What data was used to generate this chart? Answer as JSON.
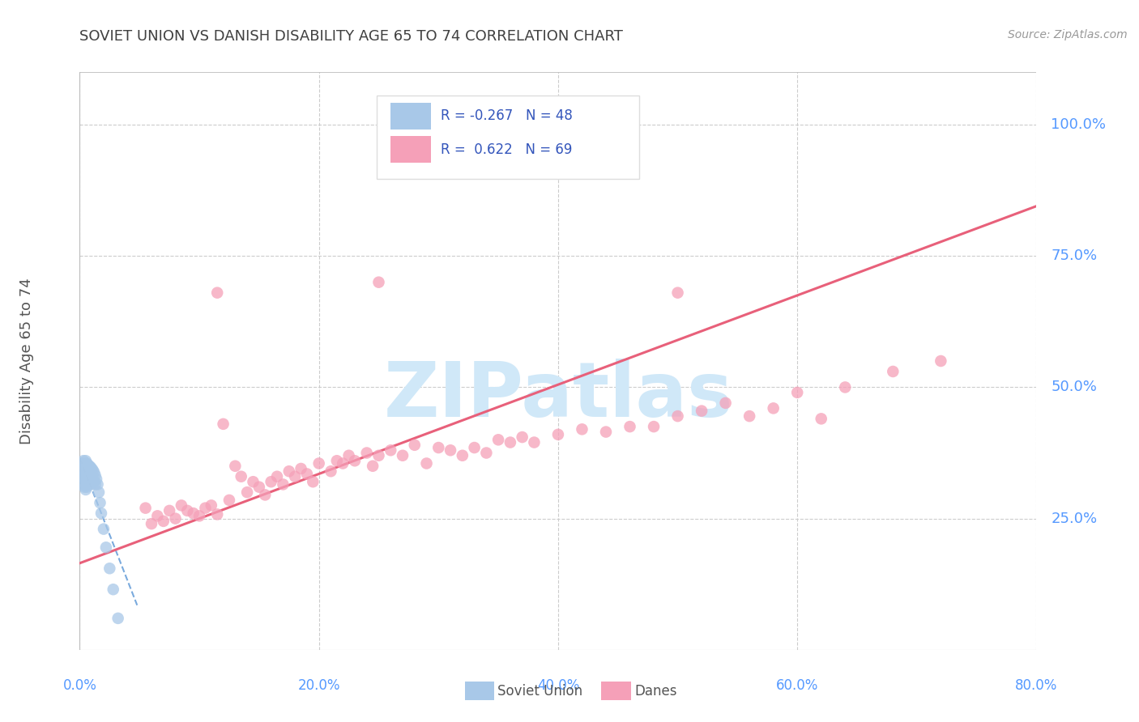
{
  "title": "SOVIET UNION VS DANISH DISABILITY AGE 65 TO 74 CORRELATION CHART",
  "source": "Source: ZipAtlas.com",
  "ylabel": "Disability Age 65 to 74",
  "legend_r_soviet": "R = -0.267",
  "legend_n_soviet": "N = 48",
  "legend_r_danes": "R =  0.622",
  "legend_n_danes": "N = 69",
  "soviet_color": "#a8c8e8",
  "danes_color": "#f5a0b8",
  "soviet_line_color": "#7aaadd",
  "danes_line_color": "#e8607a",
  "background_color": "#ffffff",
  "grid_color": "#cccccc",
  "axis_label_color": "#5599ff",
  "title_color": "#404040",
  "watermark_color": "#d0e8f8",
  "xlim": [
    0.0,
    0.8
  ],
  "ylim": [
    0.0,
    1.1
  ],
  "xticks": [
    0.0,
    0.2,
    0.4,
    0.6,
    0.8
  ],
  "xtick_labels": [
    "0.0%",
    "20.0%",
    "40.0%",
    "60.0%",
    "80.0%"
  ],
  "ytick_positions": [
    0.25,
    0.5,
    0.75,
    1.0
  ],
  "ytick_labels": [
    "25.0%",
    "50.0%",
    "75.0%",
    "100.0%"
  ],
  "soviet_x": [
    0.002,
    0.002,
    0.003,
    0.003,
    0.003,
    0.003,
    0.004,
    0.004,
    0.004,
    0.004,
    0.005,
    0.005,
    0.005,
    0.005,
    0.005,
    0.006,
    0.006,
    0.006,
    0.006,
    0.007,
    0.007,
    0.007,
    0.007,
    0.008,
    0.008,
    0.008,
    0.009,
    0.009,
    0.009,
    0.01,
    0.01,
    0.01,
    0.011,
    0.011,
    0.012,
    0.012,
    0.013,
    0.013,
    0.014,
    0.015,
    0.016,
    0.017,
    0.018,
    0.02,
    0.022,
    0.025,
    0.028,
    0.032
  ],
  "soviet_y": [
    0.355,
    0.33,
    0.36,
    0.345,
    0.33,
    0.315,
    0.35,
    0.338,
    0.325,
    0.31,
    0.36,
    0.345,
    0.335,
    0.32,
    0.305,
    0.355,
    0.34,
    0.325,
    0.31,
    0.352,
    0.34,
    0.328,
    0.315,
    0.35,
    0.336,
    0.32,
    0.348,
    0.332,
    0.318,
    0.345,
    0.33,
    0.315,
    0.342,
    0.325,
    0.338,
    0.32,
    0.332,
    0.315,
    0.325,
    0.315,
    0.3,
    0.28,
    0.26,
    0.23,
    0.195,
    0.155,
    0.115,
    0.06
  ],
  "danes_x": [
    0.055,
    0.06,
    0.065,
    0.07,
    0.075,
    0.08,
    0.085,
    0.09,
    0.095,
    0.1,
    0.105,
    0.11,
    0.115,
    0.12,
    0.125,
    0.13,
    0.135,
    0.14,
    0.145,
    0.15,
    0.155,
    0.16,
    0.165,
    0.17,
    0.175,
    0.18,
    0.185,
    0.19,
    0.195,
    0.2,
    0.21,
    0.215,
    0.22,
    0.225,
    0.23,
    0.24,
    0.245,
    0.25,
    0.26,
    0.27,
    0.28,
    0.29,
    0.3,
    0.31,
    0.32,
    0.33,
    0.34,
    0.35,
    0.36,
    0.37,
    0.38,
    0.4,
    0.42,
    0.44,
    0.46,
    0.48,
    0.5,
    0.52,
    0.54,
    0.56,
    0.58,
    0.6,
    0.64,
    0.68,
    0.72,
    0.5,
    0.115,
    0.25,
    0.62
  ],
  "danes_y": [
    0.27,
    0.24,
    0.255,
    0.245,
    0.265,
    0.25,
    0.275,
    0.265,
    0.26,
    0.255,
    0.27,
    0.275,
    0.258,
    0.43,
    0.285,
    0.35,
    0.33,
    0.3,
    0.32,
    0.31,
    0.295,
    0.32,
    0.33,
    0.315,
    0.34,
    0.33,
    0.345,
    0.335,
    0.32,
    0.355,
    0.34,
    0.36,
    0.355,
    0.37,
    0.36,
    0.375,
    0.35,
    0.37,
    0.38,
    0.37,
    0.39,
    0.355,
    0.385,
    0.38,
    0.37,
    0.385,
    0.375,
    0.4,
    0.395,
    0.405,
    0.395,
    0.41,
    0.42,
    0.415,
    0.425,
    0.425,
    0.445,
    0.455,
    0.47,
    0.445,
    0.46,
    0.49,
    0.5,
    0.53,
    0.55,
    0.68,
    0.68,
    0.7,
    0.44
  ],
  "soviet_trendline_x": [
    0.0,
    0.048
  ],
  "soviet_trendline_y": [
    0.365,
    0.085
  ],
  "danes_trendline_x": [
    0.0,
    0.8
  ],
  "danes_trendline_y": [
    0.165,
    0.845
  ]
}
